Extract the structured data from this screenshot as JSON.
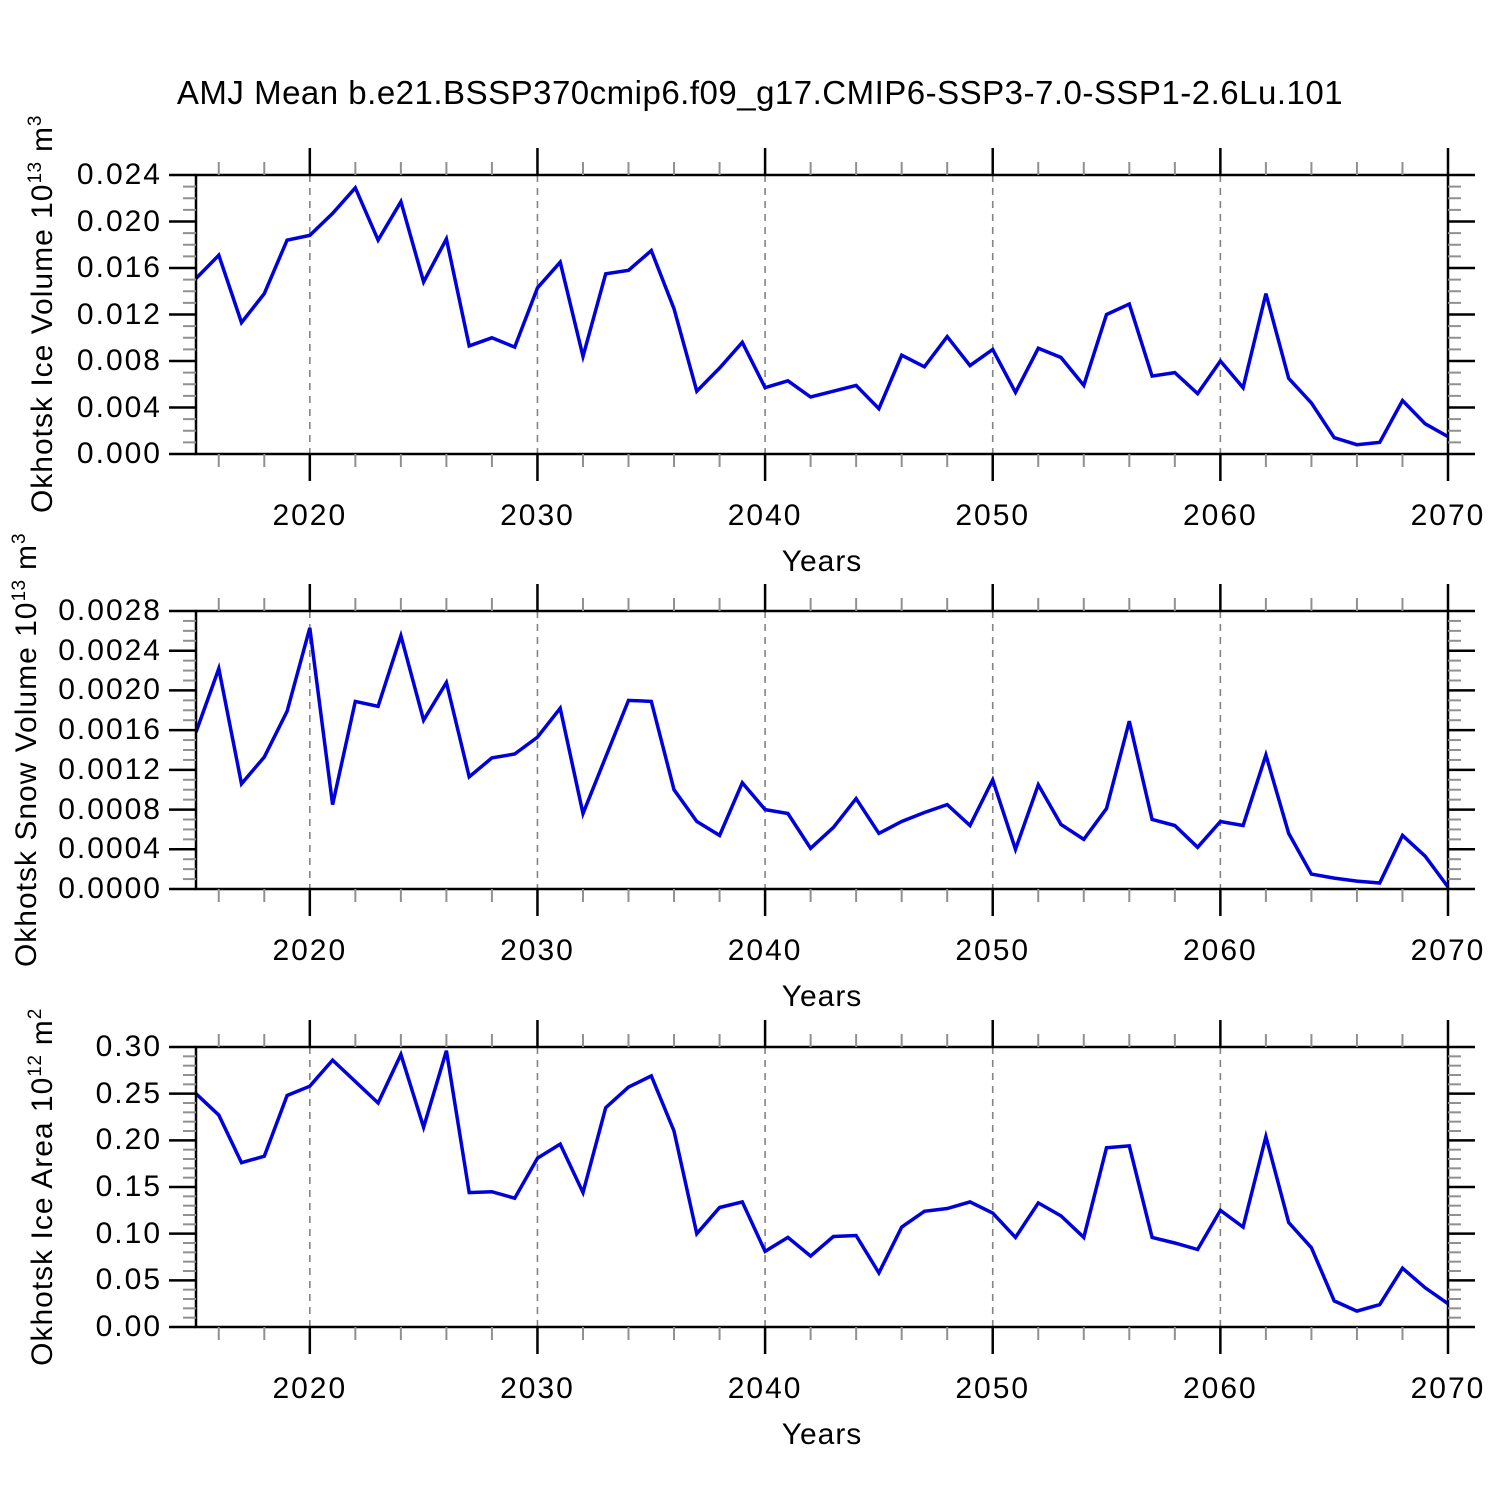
{
  "title": "AMJ Mean b.e21.BSSP370cmip6.f09_g17.CMIP6-SSP3-7.0-SSP1-2.6Lu.101",
  "colors": {
    "line": "#0000dd",
    "grid": "#848484",
    "axis": "#000000",
    "minor_tick": "#909090",
    "text": "#000000",
    "background": "#ffffff"
  },
  "x_axis": {
    "years_start": 2015,
    "years_end": 2070,
    "major_tick_labels": [
      "2020",
      "2030",
      "2040",
      "2050",
      "2060",
      "2070"
    ],
    "major_tick_years": [
      2020,
      2030,
      2040,
      2050,
      2060,
      2070
    ],
    "minor_step_years": 2,
    "gridline_years": [
      2020,
      2030,
      2040,
      2050,
      2060
    ]
  },
  "chart_data": [
    {
      "type": "line",
      "name": "okhotsk-ice-volume",
      "ylabel_base": "Okhotsk Ice Volume 10",
      "ylabel_sup": "13",
      "ylabel_unit": " m",
      "ylabel_unit_sup": "3",
      "xlabel": "Years",
      "ylim": [
        0,
        0.024
      ],
      "ytick_step": 0.004,
      "yminor_step": 0.001,
      "ytick_labels": [
        "0.000",
        "0.004",
        "0.008",
        "0.012",
        "0.016",
        "0.020",
        "0.024"
      ],
      "x_start": 2015,
      "values": [
        0.0151,
        0.0171,
        0.0113,
        0.0138,
        0.0184,
        0.0188,
        0.0207,
        0.0229,
        0.0184,
        0.0217,
        0.0148,
        0.0185,
        0.0093,
        0.01,
        0.0092,
        0.0143,
        0.0165,
        0.0084,
        0.0155,
        0.0158,
        0.0175,
        0.0125,
        0.0054,
        0.0074,
        0.0096,
        0.0057,
        0.0063,
        0.0049,
        0.0054,
        0.0059,
        0.0039,
        0.0085,
        0.0075,
        0.0101,
        0.0076,
        0.009,
        0.0053,
        0.0091,
        0.0083,
        0.0059,
        0.012,
        0.0129,
        0.0067,
        0.007,
        0.0052,
        0.008,
        0.0057,
        0.0138,
        0.0065,
        0.0044,
        0.0014,
        0.0008,
        0.001,
        0.0046,
        0.0026,
        0.0015
      ]
    },
    {
      "type": "line",
      "name": "okhotsk-snow-volume",
      "ylabel_base": "Okhotsk Snow Volume 10",
      "ylabel_sup": "13",
      "ylabel_unit": " m",
      "ylabel_unit_sup": "3",
      "xlabel": "Years",
      "ylim": [
        0,
        0.0028
      ],
      "ytick_step": 0.0004,
      "yminor_step": 0.0001,
      "ytick_labels": [
        "0.0000",
        "0.0004",
        "0.0008",
        "0.0012",
        "0.0016",
        "0.0020",
        "0.0024",
        "0.0028"
      ],
      "x_start": 2015,
      "values": [
        0.00158,
        0.00222,
        0.00106,
        0.00133,
        0.00179,
        0.00263,
        0.00085,
        0.00189,
        0.00184,
        0.00255,
        0.0017,
        0.00208,
        0.00113,
        0.00132,
        0.00136,
        0.00153,
        0.00182,
        0.00076,
        0.00133,
        0.0019,
        0.00189,
        0.001,
        0.00068,
        0.00054,
        0.00107,
        0.0008,
        0.00076,
        0.00041,
        0.00062,
        0.00091,
        0.00056,
        0.00068,
        0.00077,
        0.00085,
        0.00064,
        0.0011,
        0.0004,
        0.00105,
        0.00065,
        0.0005,
        0.00081,
        0.00169,
        0.0007,
        0.00064,
        0.00042,
        0.00068,
        0.00064,
        0.00135,
        0.00056,
        0.00015,
        0.00011,
        8e-05,
        6e-05,
        0.00054,
        0.00033,
        2e-05
      ]
    },
    {
      "type": "line",
      "name": "okhotsk-ice-area",
      "ylabel_base": "Okhotsk Ice Area 10",
      "ylabel_sup": "12",
      "ylabel_unit": " m",
      "ylabel_unit_sup": "2",
      "xlabel": "Years",
      "ylim": [
        0,
        0.3
      ],
      "ytick_step": 0.05,
      "yminor_step": 0.01,
      "ytick_labels": [
        "0.00",
        "0.05",
        "0.10",
        "0.15",
        "0.20",
        "0.25",
        "0.30"
      ],
      "x_start": 2015,
      "values": [
        0.25,
        0.227,
        0.176,
        0.183,
        0.248,
        0.258,
        0.286,
        0.263,
        0.24,
        0.292,
        0.214,
        0.296,
        0.144,
        0.145,
        0.138,
        0.181,
        0.196,
        0.144,
        0.235,
        0.257,
        0.269,
        0.21,
        0.1,
        0.128,
        0.134,
        0.081,
        0.096,
        0.076,
        0.097,
        0.098,
        0.058,
        0.107,
        0.124,
        0.127,
        0.134,
        0.122,
        0.096,
        0.133,
        0.119,
        0.096,
        0.192,
        0.194,
        0.096,
        0.09,
        0.083,
        0.125,
        0.107,
        0.204,
        0.112,
        0.085,
        0.028,
        0.017,
        0.024,
        0.063,
        0.042,
        0.025
      ]
    }
  ]
}
